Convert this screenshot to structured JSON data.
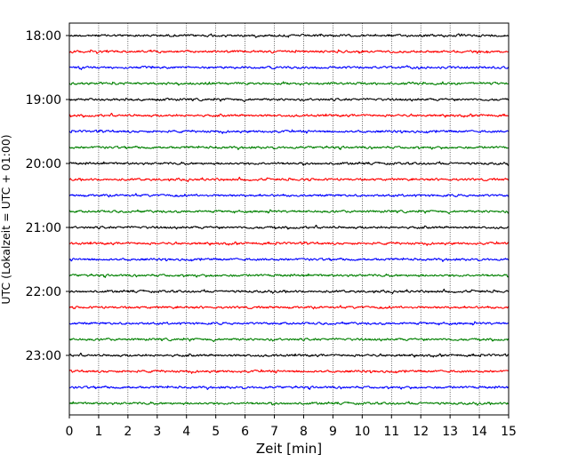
{
  "chart_data": {
    "type": "line",
    "title": "",
    "xlabel": "Zeit  [min]",
    "ylabel": "UTC (Lokalzeit = UTC + 01:00)",
    "xlim": [
      0,
      15
    ],
    "x_ticks": [
      0,
      1,
      2,
      3,
      4,
      5,
      6,
      7,
      8,
      9,
      10,
      11,
      12,
      13,
      14,
      15
    ],
    "x_grid": true,
    "y_grid": false,
    "legend": "none",
    "trace_interval_min": 15,
    "start_time": "18:00",
    "trace_colors": [
      "#000000",
      "#ff0000",
      "#0000ff",
      "#008000"
    ],
    "y_ticks": [
      {
        "label": "18:00",
        "trace_index": 0
      },
      {
        "label": "19:00",
        "trace_index": 4
      },
      {
        "label": "20:00",
        "trace_index": 8
      },
      {
        "label": "21:00",
        "trace_index": 12
      },
      {
        "label": "22:00",
        "trace_index": 16
      },
      {
        "label": "23:00",
        "trace_index": 20
      }
    ],
    "traces": [
      "18:00",
      "18:15",
      "18:30",
      "18:45",
      "19:00",
      "19:15",
      "19:30",
      "19:45",
      "20:00",
      "20:15",
      "20:30",
      "20:45",
      "21:00",
      "21:15",
      "21:30",
      "21:45",
      "22:00",
      "22:15",
      "22:30",
      "22:45",
      "23:00",
      "23:15",
      "23:30",
      "23:45"
    ]
  }
}
